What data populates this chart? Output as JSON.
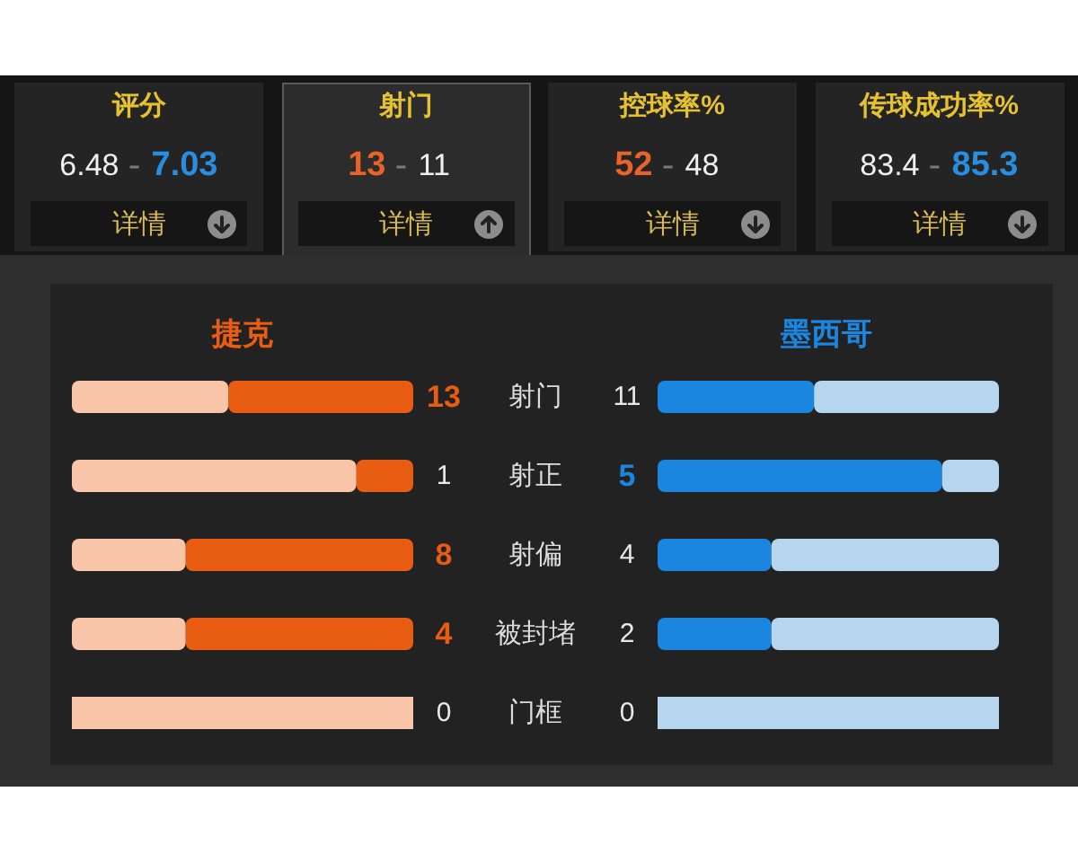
{
  "chart_data": [
    {
      "type": "other",
      "categories": [
        "评分",
        "射门",
        "控球率%",
        "传球成功率%"
      ],
      "series": [
        {
          "colors": [
            "#f0f0f0",
            "#e8622a",
            "#e8622a",
            "#f0f0f0"
          ],
          "values": [
            6.48,
            13,
            52,
            83.4
          ]
        },
        {
          "colors": [
            "#2a8ee0",
            "#f0f0f0",
            "#f0f0f0",
            "#2a8ee0"
          ],
          "values": [
            7.03,
            11,
            48,
            85.3
          ]
        }
      ],
      "data_labels": true,
      "annotations": [
        "详情",
        "详情",
        "详情",
        "详情"
      ]
    },
    {
      "type": "bar",
      "orientation": "horizontal",
      "stacked": true,
      "categories": [
        "射门"
      ],
      "series": [
        {
          "name": "捷克",
          "color": "#e85d12",
          "values": [
            13
          ],
          "value_labels": [
            "13"
          ]
        },
        {
          "color": "#f8c5a8",
          "values": [
            11
          ]
        }
      ]
    },
    {
      "type": "bar",
      "orientation": "horizontal",
      "stacked": true,
      "categories": [
        null
      ],
      "series": [
        {
          "name": "墨西哥",
          "color": "#1a86e0",
          "values": [
            11
          ],
          "value_labels": [
            "11"
          ]
        },
        {
          "color": "#b6d6ef",
          "values": [
            13
          ]
        }
      ]
    },
    {
      "type": "bar",
      "orientation": "horizontal",
      "stacked": true,
      "categories": [
        "射正"
      ],
      "series": [
        {
          "color": "#e85d12",
          "values": [
            1
          ],
          "value_labels": [
            "1"
          ]
        },
        {
          "color": "#f8c5a8",
          "values": [
            5
          ]
        }
      ]
    },
    {
      "type": "bar",
      "orientation": "horizontal",
      "stacked": true,
      "categories": [
        null
      ],
      "series": [
        {
          "color": "#1a86e0",
          "values": [
            5
          ],
          "value_labels": [
            "5"
          ]
        },
        {
          "color": "#b6d6ef",
          "values": [
            1
          ]
        }
      ]
    },
    {
      "type": "bar",
      "orientation": "horizontal",
      "stacked": true,
      "categories": [
        "射偏"
      ],
      "series": [
        {
          "color": "#e85d12",
          "values": [
            8
          ],
          "value_labels": [
            "8"
          ]
        },
        {
          "color": "#f8c5a8",
          "values": [
            4
          ]
        }
      ]
    },
    {
      "type": "bar",
      "orientation": "horizontal",
      "stacked": true,
      "categories": [
        null
      ],
      "series": [
        {
          "color": "#1a86e0",
          "values": [
            4
          ],
          "value_labels": [
            "4"
          ]
        },
        {
          "color": "#b6d6ef",
          "values": [
            8
          ]
        }
      ]
    },
    {
      "type": "bar",
      "orientation": "horizontal",
      "stacked": true,
      "categories": [
        "被封堵",
        "门框"
      ],
      "series": [
        {
          "color": "#e85d12",
          "values": [
            4,
            0
          ],
          "value_labels": [
            "4",
            "0"
          ]
        },
        {
          "color": "#f8c5a8",
          "values": [
            2,
            0
          ]
        }
      ]
    },
    {
      "type": "bar",
      "orientation": "horizontal",
      "stacked": true,
      "categories": [
        null,
        null
      ],
      "series": [
        {
          "color": "#1a86e0",
          "values": [
            2,
            0
          ],
          "value_labels": [
            "2",
            "0"
          ]
        },
        {
          "color": "#b6d6ef",
          "values": [
            4,
            0
          ]
        }
      ]
    }
  ]
}
